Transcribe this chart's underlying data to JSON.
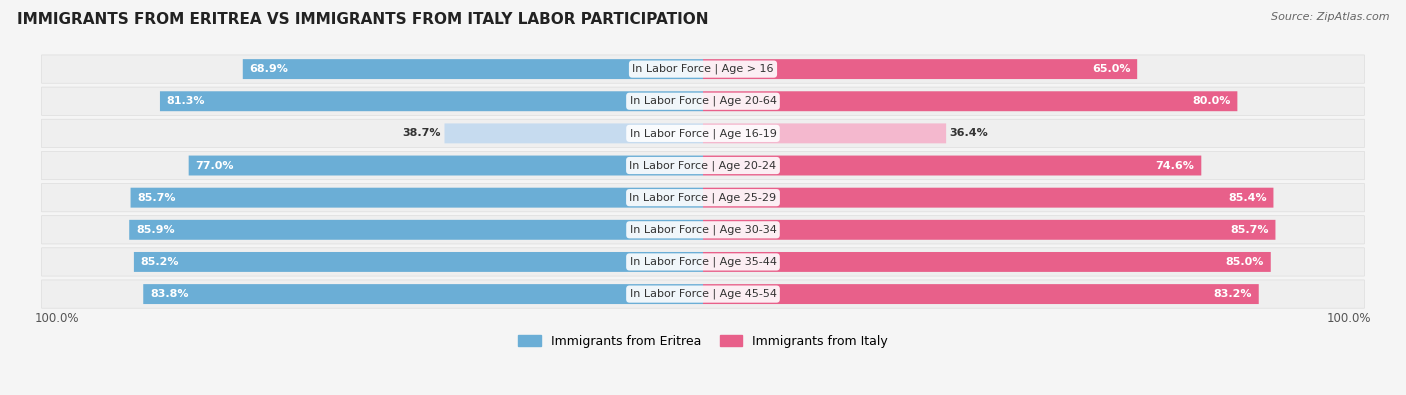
{
  "title": "IMMIGRANTS FROM ERITREA VS IMMIGRANTS FROM ITALY LABOR PARTICIPATION",
  "source": "Source: ZipAtlas.com",
  "categories": [
    "In Labor Force | Age > 16",
    "In Labor Force | Age 20-64",
    "In Labor Force | Age 16-19",
    "In Labor Force | Age 20-24",
    "In Labor Force | Age 25-29",
    "In Labor Force | Age 30-34",
    "In Labor Force | Age 35-44",
    "In Labor Force | Age 45-54"
  ],
  "eritrea_values": [
    68.9,
    81.3,
    38.7,
    77.0,
    85.7,
    85.9,
    85.2,
    83.8
  ],
  "italy_values": [
    65.0,
    80.0,
    36.4,
    74.6,
    85.4,
    85.7,
    85.0,
    83.2
  ],
  "eritrea_color_strong": "#6baed6",
  "eritrea_color_light": "#c6dbef",
  "italy_color_strong": "#e8608a",
  "italy_color_light": "#f4b8ce",
  "row_bg_color": "#efefef",
  "bg_color": "#f5f5f5",
  "label_dark": "#333333",
  "label_white": "#ffffff",
  "legend_eritrea": "#6baed6",
  "legend_italy": "#e8608a",
  "x_label": "100.0%",
  "low_threshold": 50.0,
  "title_fontsize": 11,
  "bar_fontsize": 8,
  "cat_fontsize": 8,
  "legend_fontsize": 9
}
